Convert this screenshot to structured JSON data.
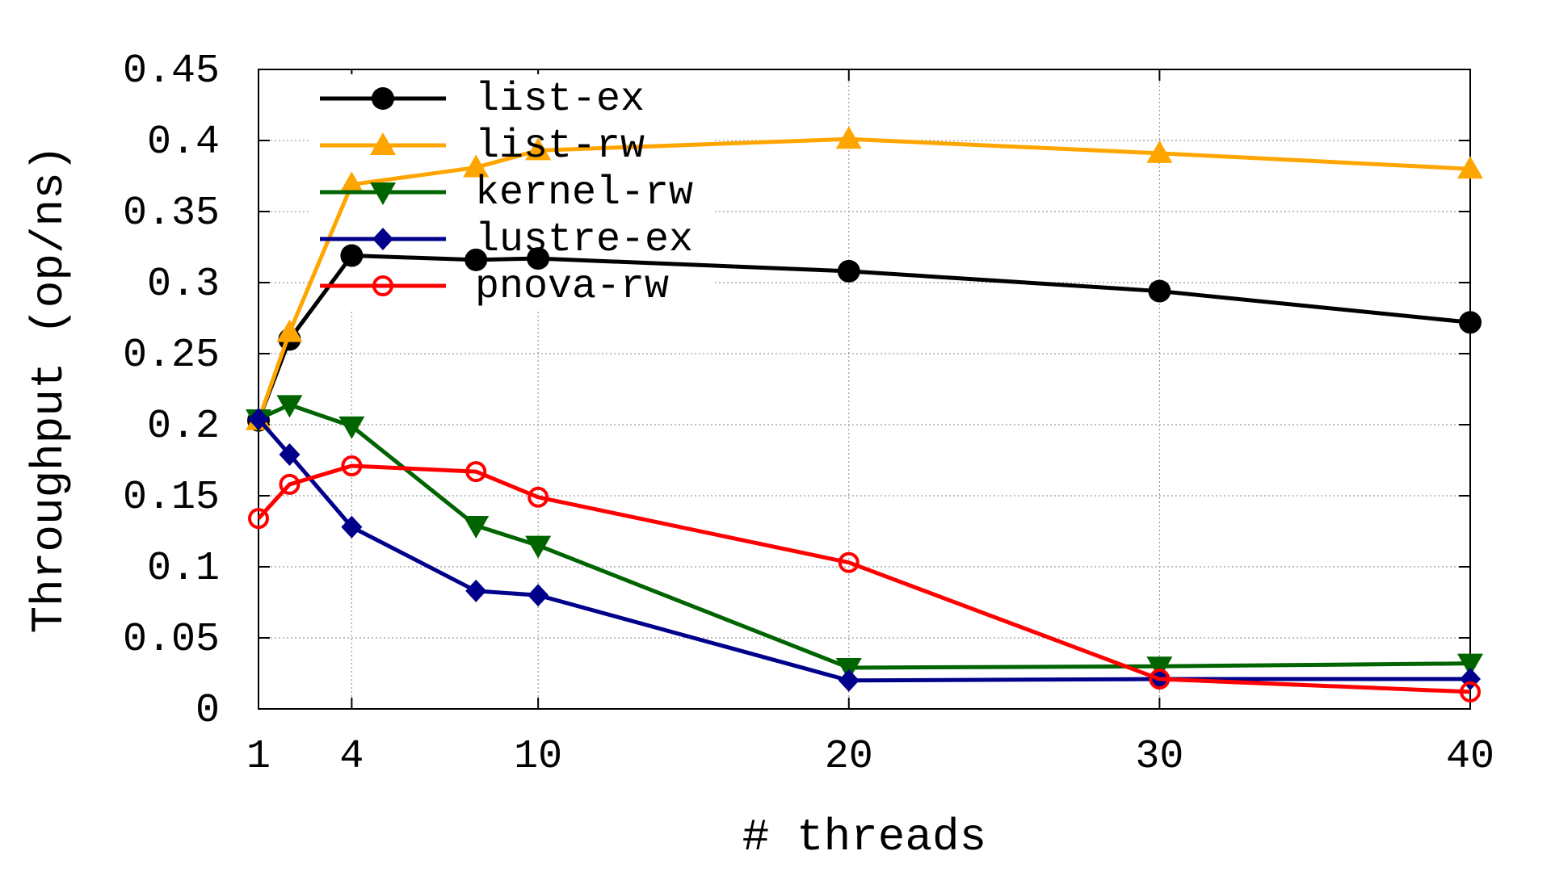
{
  "chart_data": {
    "type": "line",
    "xlabel": "# threads",
    "ylabel": "Throughput (op/ns)",
    "xlim": [
      1,
      40
    ],
    "ylim": [
      0,
      0.45
    ],
    "x_ticks": [
      1,
      4,
      10,
      20,
      30,
      40
    ],
    "x_tick_labels": [
      "1",
      "4",
      "10",
      "20",
      "30",
      "40"
    ],
    "y_ticks": [
      0,
      0.05,
      0.1,
      0.15,
      0.2,
      0.25,
      0.3,
      0.35,
      0.4,
      0.45
    ],
    "y_tick_labels": [
      "0",
      "0.05",
      "0.1",
      "0.15",
      "0.2",
      "0.25",
      "0.3",
      "0.35",
      "0.4",
      "0.45"
    ],
    "grid": true,
    "legend_position": "top-left",
    "series": [
      {
        "name": "list-ex",
        "color": "#000000",
        "marker": "circle",
        "x": [
          1,
          2,
          4,
          8,
          10,
          20,
          30,
          40
        ],
        "y": [
          0.203,
          0.26,
          0.319,
          0.316,
          0.317,
          0.308,
          0.294,
          0.272
        ]
      },
      {
        "name": "list-rw",
        "color": "#ffa500",
        "marker": "triangle-up",
        "x": [
          1,
          2,
          4,
          8,
          10,
          20,
          30,
          40
        ],
        "y": [
          0.203,
          0.265,
          0.369,
          0.381,
          0.393,
          0.401,
          0.391,
          0.38
        ]
      },
      {
        "name": "kernel-rw",
        "color": "#006400",
        "marker": "triangle-down",
        "x": [
          1,
          2,
          4,
          8,
          10,
          20,
          30,
          40
        ],
        "y": [
          0.204,
          0.214,
          0.199,
          0.129,
          0.115,
          0.029,
          0.03,
          0.032
        ]
      },
      {
        "name": "lustre-ex",
        "color": "#00008b",
        "marker": "diamond",
        "x": [
          1,
          2,
          4,
          8,
          10,
          20,
          30,
          40
        ],
        "y": [
          0.204,
          0.179,
          0.128,
          0.083,
          0.08,
          0.02,
          0.021,
          0.021
        ]
      },
      {
        "name": "pnova-rw",
        "color": "#ff0000",
        "marker": "circle-open",
        "x": [
          1,
          2,
          4,
          8,
          10,
          20,
          30,
          40
        ],
        "y": [
          0.134,
          0.158,
          0.171,
          0.167,
          0.149,
          0.103,
          0.021,
          0.012
        ]
      }
    ]
  }
}
